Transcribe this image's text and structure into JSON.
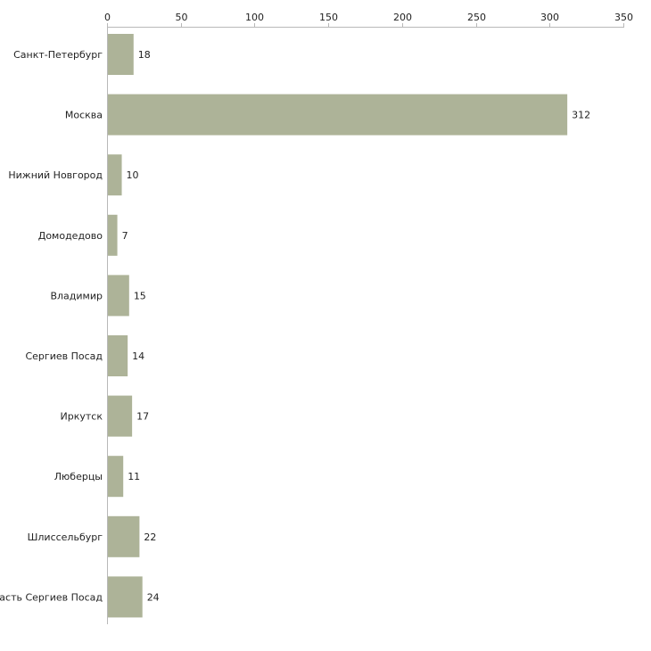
{
  "chart_data": {
    "type": "bar",
    "orientation": "horizontal",
    "title": "",
    "xlabel": "",
    "ylabel": "",
    "xlim": [
      0,
      350
    ],
    "x_ticks": [
      0,
      50,
      100,
      150,
      200,
      250,
      300,
      350
    ],
    "x_tick_labels": [
      "0",
      "50",
      "100",
      "150",
      "200",
      "250",
      "300",
      "350"
    ],
    "x_axis_position": "top",
    "grid": false,
    "legend": "none",
    "categories": [
      "Санкт-Петербург",
      "Москва",
      "Нижний Новгород",
      "Домодедово",
      "Владимир",
      "Сергиев Посад",
      "Иркутск",
      "Люберцы",
      "Шлиссельбург",
      "ласть Сергиев Посад"
    ],
    "values": [
      18,
      312,
      10,
      7,
      15,
      14,
      17,
      11,
      22,
      24
    ],
    "data_labels": [
      "18",
      "312",
      "10",
      "7",
      "15",
      "14",
      "17",
      "11",
      "22",
      "24"
    ],
    "bar_color": "#adb398",
    "axis_color": "#b8b8b8",
    "text_color": "#222222"
  }
}
